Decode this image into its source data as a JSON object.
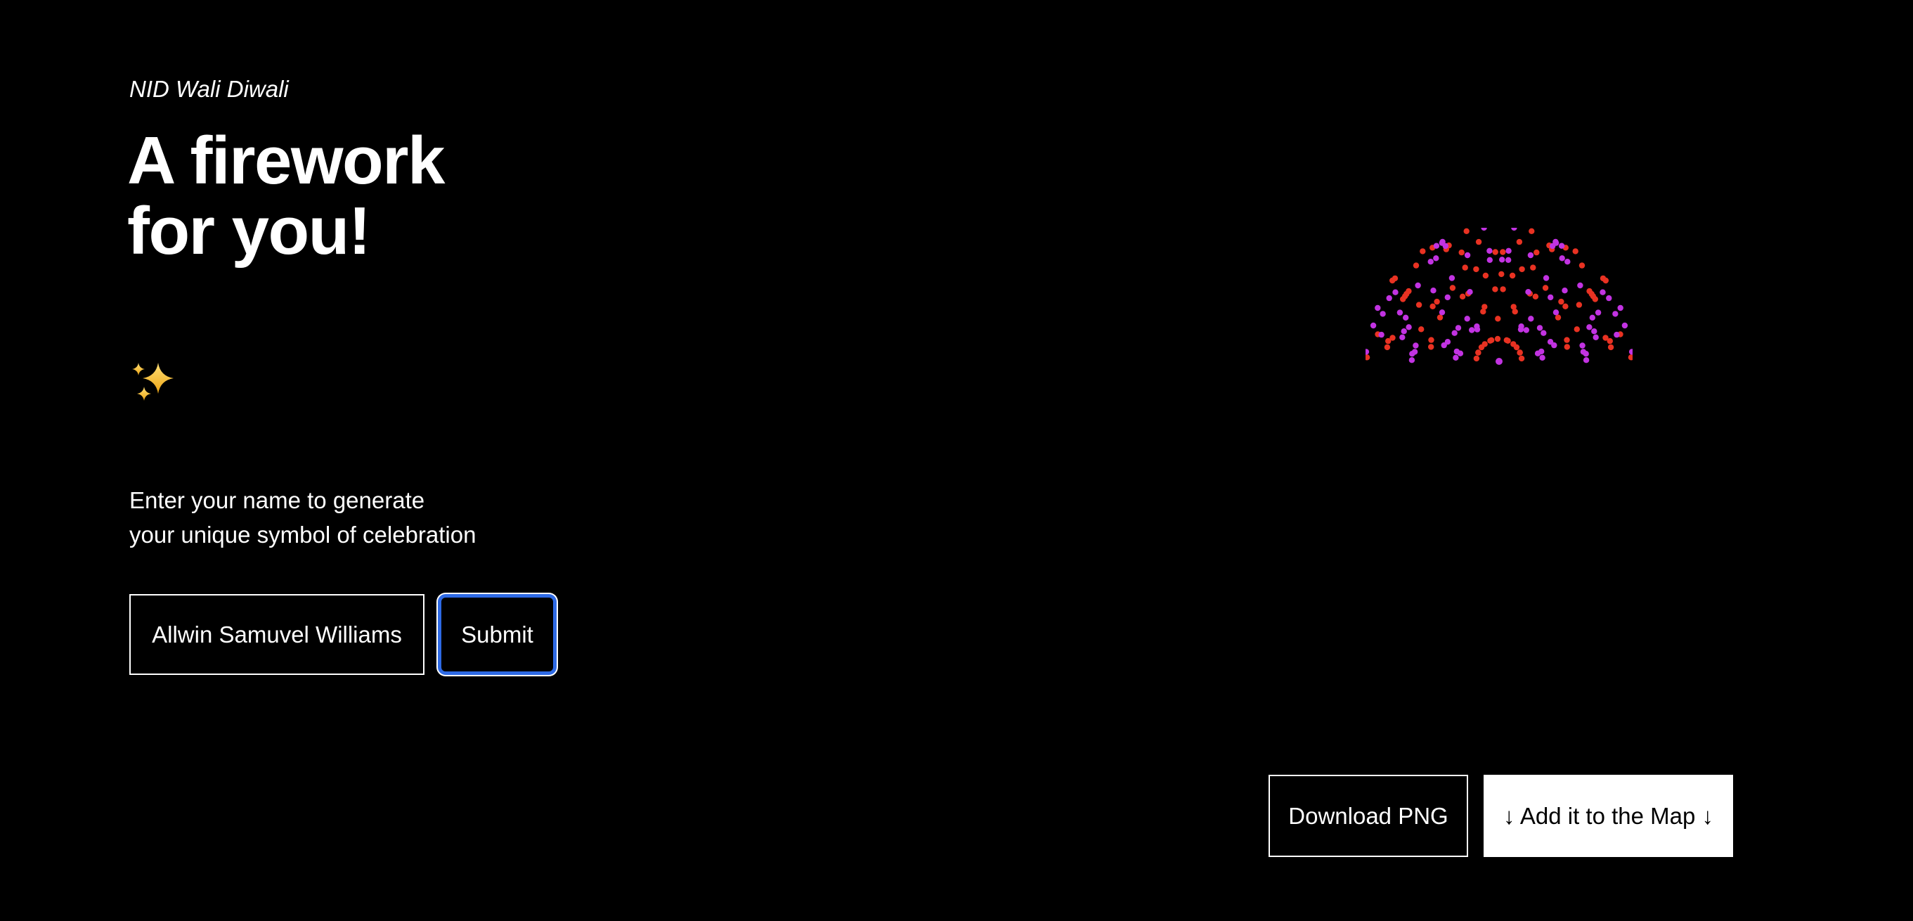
{
  "window": {
    "background": "#000000"
  },
  "header": {
    "eyebrow": "NID Wali Diwali",
    "title_lines": [
      "A firework",
      "for you!"
    ]
  },
  "intro": {
    "lines": [
      "Enter your name to generate",
      "your unique symbol of celebration"
    ]
  },
  "form": {
    "name_value": "Allwin Samuvel Williams",
    "submit_label": "Submit",
    "focus_ring_color": "#2e6ae5"
  },
  "icons": {
    "sparkles": {
      "gold_light": "#ffdf76",
      "gold_dark": "#eca413"
    }
  },
  "firework": {
    "seed": 11,
    "size": 380,
    "dot_radius": 4.2,
    "pair_gap": 9,
    "mirror_axis_threshold": 5,
    "center_dot": {
      "color_key": "purple",
      "radius": 5
    },
    "colors": {
      "red": "#e93222",
      "purple": "#c233e2"
    },
    "rings": [
      {
        "r": 32,
        "count": 8,
        "angle_jitter": 4,
        "radius_jitter": 1,
        "pair_prob": 1,
        "palette": [
          "red"
        ]
      },
      {
        "r": 58,
        "count": 10,
        "angle_jitter": 10,
        "radius_jitter": 4,
        "pair_prob": 0.2,
        "palette": [
          "purple",
          "purple",
          "red"
        ]
      },
      {
        "r": 80,
        "count": 12,
        "angle_jitter": 12,
        "radius_jitter": 6,
        "pair_prob": 0.25,
        "palette": [
          "red",
          "purple"
        ]
      },
      {
        "r": 101,
        "count": 14,
        "angle_jitter": 12,
        "radius_jitter": 7,
        "pair_prob": 0.3,
        "palette": [
          "red",
          "purple"
        ]
      },
      {
        "r": 122,
        "count": 16,
        "angle_jitter": 12,
        "radius_jitter": 7,
        "pair_prob": 0.3,
        "palette": [
          "purple",
          "red"
        ]
      },
      {
        "r": 142,
        "count": 18,
        "angle_jitter": 12,
        "radius_jitter": 7,
        "pair_prob": 0.28,
        "palette": [
          "red",
          "purple"
        ]
      },
      {
        "r": 160,
        "count": 20,
        "angle_jitter": 11,
        "radius_jitter": 6,
        "pair_prob": 0.22,
        "palette": [
          "red",
          "purple",
          "red"
        ]
      },
      {
        "r": 176,
        "count": 22,
        "angle_jitter": 10,
        "radius_jitter": 5,
        "pair_prob": 0.18,
        "palette": [
          "purple",
          "red"
        ]
      },
      {
        "r": 189,
        "count": 24,
        "angle_jitter": 8,
        "radius_jitter": 4,
        "pair_prob": 0.12,
        "palette": [
          "red",
          "purple"
        ]
      }
    ]
  },
  "actions": {
    "download_label": "Download PNG",
    "map_label": "↓ Add it to the Map ↓"
  }
}
